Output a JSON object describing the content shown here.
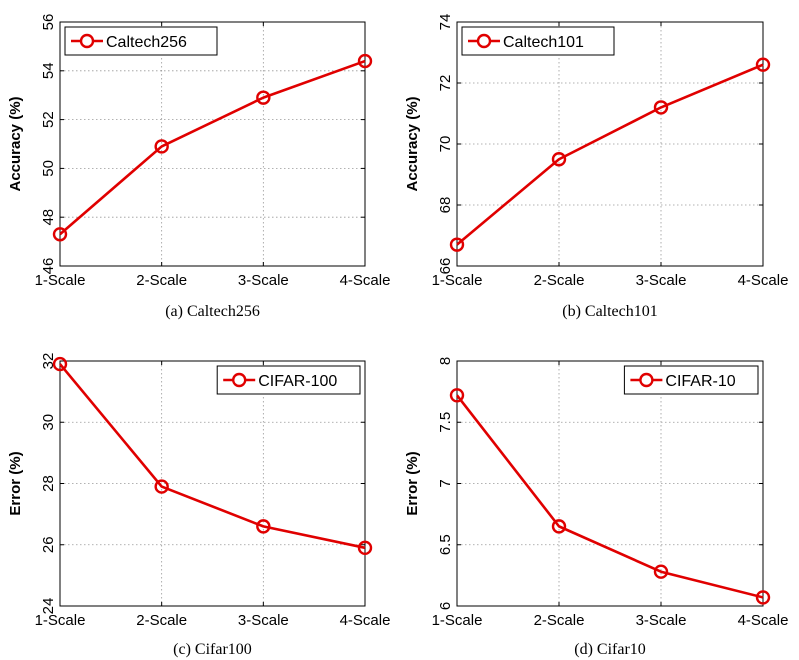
{
  "chart_data": [
    {
      "type": "line",
      "categories": [
        "1-Scale",
        "2-Scale",
        "3-Scale",
        "4-Scale"
      ],
      "series": [
        {
          "name": "Caltech256",
          "values": [
            47.3,
            50.9,
            52.9,
            54.4
          ],
          "color": "#e00000",
          "marker": "circle"
        }
      ],
      "ylabel": "Accuracy (%)",
      "ylim": [
        46,
        56
      ],
      "yticks": [
        "46",
        "48",
        "50",
        "52",
        "54",
        "56"
      ],
      "ytick_values": [
        46,
        48,
        50,
        52,
        54,
        56
      ],
      "grid": true,
      "legend_position": "top-left",
      "caption": "(a) Caltech256"
    },
    {
      "type": "line",
      "categories": [
        "1-Scale",
        "2-Scale",
        "3-Scale",
        "4-Scale"
      ],
      "series": [
        {
          "name": "Caltech101",
          "values": [
            66.7,
            69.5,
            71.2,
            72.6
          ],
          "color": "#e00000",
          "marker": "circle"
        }
      ],
      "ylabel": "Accuracy (%)",
      "ylim": [
        66,
        74
      ],
      "yticks": [
        "66",
        "68",
        "70",
        "72",
        "74"
      ],
      "ytick_values": [
        66,
        68,
        70,
        72,
        74
      ],
      "grid": true,
      "legend_position": "top-left",
      "caption": "(b) Caltech101"
    },
    {
      "type": "line",
      "categories": [
        "1-Scale",
        "2-Scale",
        "3-Scale",
        "4-Scale"
      ],
      "series": [
        {
          "name": "CIFAR-100",
          "values": [
            31.9,
            27.9,
            26.6,
            25.9
          ],
          "color": "#e00000",
          "marker": "circle"
        }
      ],
      "ylabel": "Error (%)",
      "ylim": [
        24,
        32
      ],
      "yticks": [
        "24",
        "26",
        "28",
        "30",
        "32"
      ],
      "ytick_values": [
        24,
        26,
        28,
        30,
        32
      ],
      "grid": true,
      "legend_position": "top-right",
      "caption": "(c) Cifar100"
    },
    {
      "type": "line",
      "categories": [
        "1-Scale",
        "2-Scale",
        "3-Scale",
        "4-Scale"
      ],
      "series": [
        {
          "name": "CIFAR-10",
          "values": [
            7.72,
            6.65,
            6.28,
            6.07
          ],
          "color": "#e00000",
          "marker": "circle"
        }
      ],
      "ylabel": "Error (%)",
      "ylim": [
        6,
        8
      ],
      "yticks": [
        "6",
        "6.5",
        "7",
        "7.5",
        "8"
      ],
      "ytick_values": [
        6,
        6.5,
        7,
        7.5,
        8
      ],
      "grid": true,
      "legend_position": "top-right",
      "caption": "(d) Cifar10"
    }
  ]
}
